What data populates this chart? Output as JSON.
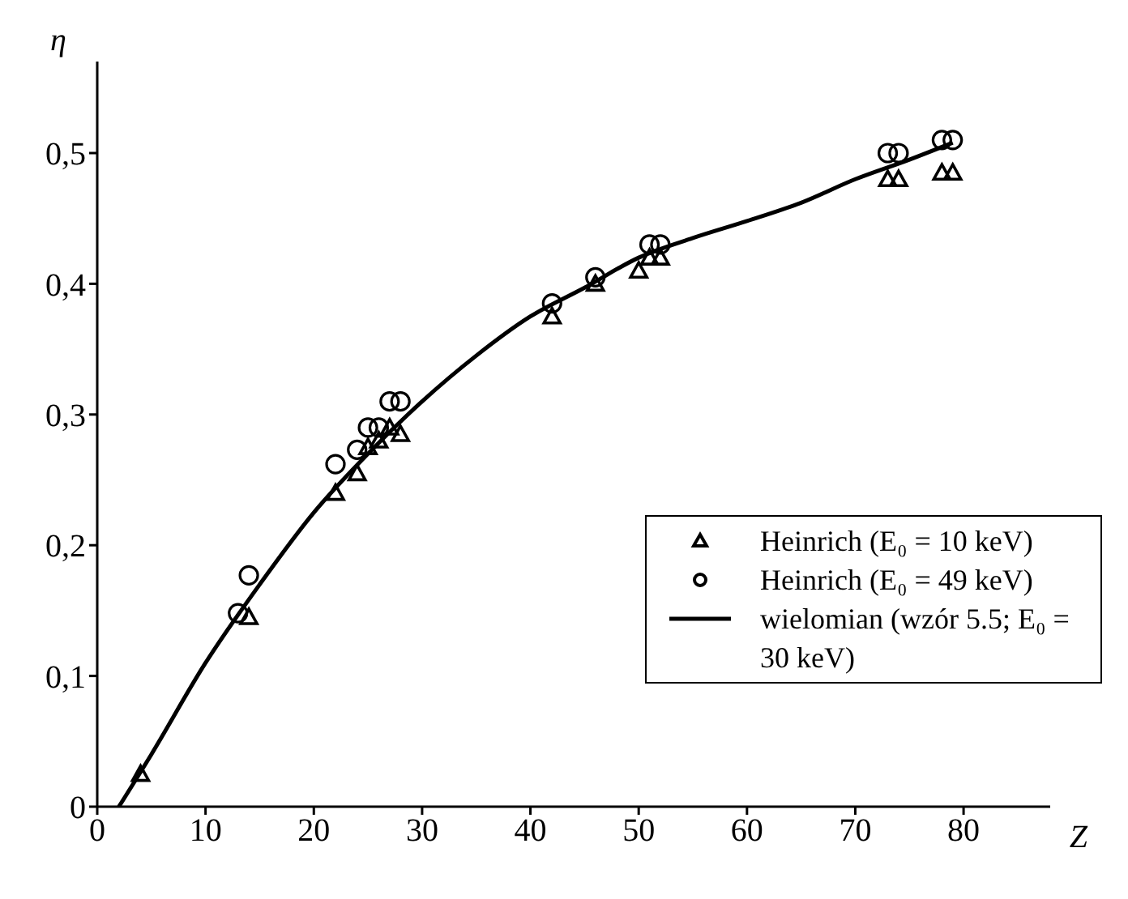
{
  "chart_data": {
    "type": "scatter",
    "xlabel": "Z",
    "ylabel": "η",
    "xlim": [
      0,
      88
    ],
    "ylim": [
      0,
      0.57
    ],
    "xticks": [
      0,
      10,
      20,
      30,
      40,
      50,
      60,
      70,
      80
    ],
    "yticks": [
      0,
      {
        "value": 0.1,
        "label": "0,1"
      },
      {
        "value": 0.2,
        "label": "0,2"
      },
      {
        "value": 0.3,
        "label": "0,3"
      },
      {
        "value": 0.4,
        "label": "0,4"
      },
      {
        "value": 0.5,
        "label": "0,5"
      }
    ],
    "grid": false,
    "legend": "bottom right",
    "series": [
      {
        "name": "Heinrich (E₀ = 10 keV)",
        "marker": "triangle",
        "color": "#000000",
        "x": [
          4,
          14,
          22,
          24,
          25,
          26,
          27,
          28,
          42,
          46,
          50,
          51,
          52,
          73,
          74,
          78,
          79
        ],
        "values": [
          0.025,
          0.145,
          0.24,
          0.255,
          0.275,
          0.28,
          0.29,
          0.285,
          0.375,
          0.4,
          0.41,
          0.42,
          0.42,
          0.48,
          0.48,
          0.485,
          0.485
        ]
      },
      {
        "name": "Heinrich (E₀ = 49 keV)",
        "marker": "circle",
        "color": "#000000",
        "x": [
          13,
          14,
          22,
          24,
          25,
          26,
          27,
          28,
          42,
          46,
          51,
          52,
          73,
          74,
          78,
          79
        ],
        "values": [
          0.148,
          0.177,
          0.262,
          0.273,
          0.29,
          0.29,
          0.31,
          0.31,
          0.385,
          0.405,
          0.43,
          0.43,
          0.5,
          0.5,
          0.51,
          0.51
        ]
      },
      {
        "name": "wielomian (wzór 5.5; E₀ = 30 keV)",
        "type": "line",
        "marker": "none",
        "line_style": "solid",
        "color": "#000000",
        "x": [
          2,
          5,
          10,
          15,
          20,
          25,
          30,
          35,
          40,
          45,
          50,
          55,
          60,
          65,
          70,
          75,
          79
        ],
        "values": [
          0,
          0.04,
          0.11,
          0.17,
          0.225,
          0.27,
          0.31,
          0.345,
          0.375,
          0.397,
          0.42,
          0.435,
          0.448,
          0.462,
          0.48,
          0.495,
          0.508
        ]
      }
    ]
  }
}
